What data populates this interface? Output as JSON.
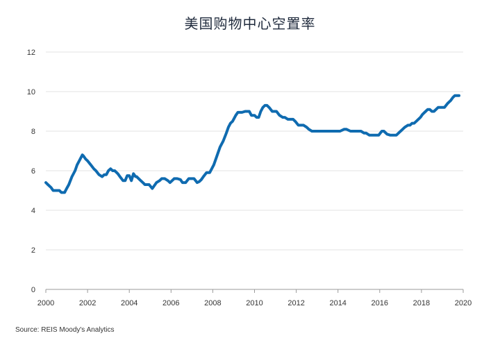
{
  "chart_data": {
    "type": "line",
    "title": "美国购物中心空置率",
    "xlabel": "",
    "ylabel": "",
    "xlim": [
      2000,
      2020
    ],
    "ylim": [
      0,
      12
    ],
    "x_ticks": [
      "2000",
      "2002",
      "2004",
      "2006",
      "2008",
      "2010",
      "2012",
      "2014",
      "2016",
      "2018",
      "2020"
    ],
    "y_ticks": [
      "0",
      "2",
      "4",
      "6",
      "8",
      "10",
      "12"
    ],
    "grid": "horizontal",
    "line_color": "#0f6bb0",
    "series": [
      {
        "x": [
          2000.0,
          2000.1,
          2000.25,
          2000.35,
          2000.5,
          2000.65,
          2000.75,
          2000.9,
          2001.0,
          2001.1,
          2001.25,
          2001.4,
          2001.5,
          2001.6,
          2001.75,
          2001.8,
          2001.9,
          2002.0,
          2002.15,
          2002.3,
          2002.4,
          2002.55,
          2002.7,
          2002.8,
          2002.9,
          2003.0,
          2003.1,
          2003.2,
          2003.3,
          2003.45,
          2003.55,
          2003.7,
          2003.8,
          2003.9,
          2004.0,
          2004.1,
          2004.2,
          2004.3,
          2004.35,
          2004.45,
          2004.55,
          2004.65,
          2004.75,
          2004.85,
          2004.95,
          2005.1,
          2005.2,
          2005.3,
          2005.45,
          2005.55,
          2005.7,
          2005.85,
          2005.95,
          2006.05,
          2006.15,
          2006.3,
          2006.45,
          2006.55,
          2006.7,
          2006.85,
          2006.95,
          2007.1,
          2007.25,
          2007.35,
          2007.45,
          2007.55,
          2007.7,
          2007.85,
          2007.95,
          2008.05,
          2008.15,
          2008.25,
          2008.35,
          2008.5,
          2008.65,
          2008.75,
          2008.85,
          2008.95,
          2009.1,
          2009.2,
          2009.3,
          2009.4,
          2009.55,
          2009.65,
          2009.75,
          2009.85,
          2010.0,
          2010.1,
          2010.2,
          2010.3,
          2010.4,
          2010.5,
          2010.6,
          2010.7,
          2010.85,
          2010.95,
          2011.05,
          2011.2,
          2011.35,
          2011.45,
          2011.6,
          2011.7,
          2011.85,
          2011.95,
          2012.1,
          2012.25,
          2012.35,
          2012.5,
          2012.6,
          2012.75,
          2012.85,
          2012.95,
          2013.1,
          2013.25,
          2013.5,
          2013.75,
          2014.0,
          2014.1,
          2014.3,
          2014.4,
          2014.6,
          2014.8,
          2015.0,
          2015.1,
          2015.25,
          2015.35,
          2015.5,
          2015.7,
          2015.85,
          2015.95,
          2016.1,
          2016.2,
          2016.35,
          2016.5,
          2016.65,
          2016.8,
          2016.95,
          2017.05,
          2017.2,
          2017.35,
          2017.45,
          2017.55,
          2017.65,
          2017.75,
          2017.85,
          2017.95,
          2018.05,
          2018.2,
          2018.3,
          2018.4,
          2018.5,
          2018.6,
          2018.8,
          2018.95,
          2019.1,
          2019.25,
          2019.4,
          2019.5,
          2019.6,
          2019.7,
          2019.8
        ],
        "values": [
          5.4,
          5.3,
          5.15,
          5.0,
          5.0,
          5.0,
          4.9,
          4.9,
          5.1,
          5.3,
          5.7,
          6.0,
          6.3,
          6.5,
          6.8,
          6.75,
          6.6,
          6.5,
          6.3,
          6.1,
          6.0,
          5.8,
          5.7,
          5.8,
          5.8,
          6.0,
          6.1,
          6.0,
          6.0,
          5.85,
          5.7,
          5.5,
          5.5,
          5.75,
          5.75,
          5.5,
          5.85,
          5.7,
          5.7,
          5.6,
          5.5,
          5.4,
          5.3,
          5.3,
          5.3,
          5.1,
          5.25,
          5.4,
          5.5,
          5.6,
          5.6,
          5.5,
          5.4,
          5.5,
          5.6,
          5.6,
          5.55,
          5.4,
          5.4,
          5.6,
          5.6,
          5.6,
          5.4,
          5.45,
          5.55,
          5.7,
          5.9,
          5.9,
          6.1,
          6.3,
          6.6,
          6.9,
          7.2,
          7.5,
          7.9,
          8.2,
          8.4,
          8.5,
          8.8,
          8.95,
          8.95,
          8.95,
          9.0,
          9.0,
          9.0,
          8.8,
          8.8,
          8.7,
          8.7,
          9.0,
          9.2,
          9.3,
          9.3,
          9.2,
          9.0,
          9.0,
          9.0,
          8.8,
          8.7,
          8.7,
          8.6,
          8.6,
          8.6,
          8.5,
          8.3,
          8.3,
          8.3,
          8.2,
          8.1,
          8.0,
          8.0,
          8.0,
          8.0,
          8.0,
          8.0,
          8.0,
          8.0,
          8.0,
          8.1,
          8.1,
          8.0,
          8.0,
          8.0,
          8.0,
          7.9,
          7.9,
          7.8,
          7.8,
          7.8,
          7.8,
          8.0,
          8.0,
          7.85,
          7.8,
          7.8,
          7.8,
          7.95,
          8.05,
          8.2,
          8.3,
          8.3,
          8.4,
          8.4,
          8.5,
          8.6,
          8.7,
          8.85,
          9.0,
          9.1,
          9.1,
          9.0,
          9.0,
          9.2,
          9.2,
          9.2,
          9.4,
          9.55,
          9.7,
          9.8,
          9.8,
          9.8
        ]
      }
    ]
  },
  "source_text": "Source: REIS Moody's Analytics"
}
